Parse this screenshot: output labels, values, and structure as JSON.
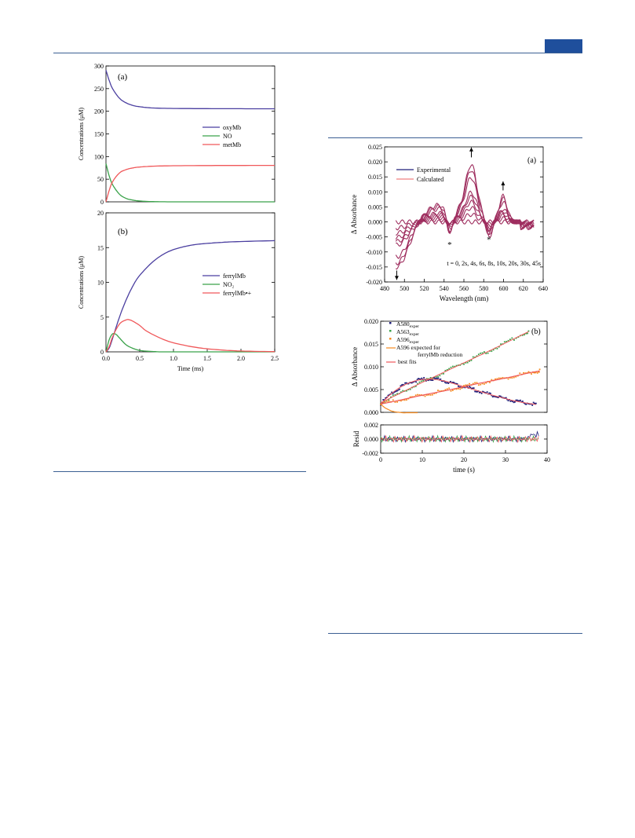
{
  "colors": {
    "rule": "#3b5f93",
    "tab": "#1f4f9c",
    "purple": "#4b3fa0",
    "green": "#3aa24a",
    "red": "#f0585a",
    "maroon": "#9e2d5e",
    "darkblue": "#1f1f7a",
    "orange": "#f58a1f",
    "lightred": "#f08080"
  },
  "chart_data": [
    {
      "id": "left-a",
      "type": "line",
      "panel_label": "(a)",
      "ylabel": "Concentrations (μM)",
      "xlabel": "",
      "xlim": [
        0,
        2.5
      ],
      "ylim": [
        0,
        320
      ],
      "y_ticks": [
        "0",
        "50",
        "100",
        "150",
        "200",
        "250",
        "300"
      ],
      "x_ticks": [],
      "legend": [
        "oxyMb",
        "NO",
        "metMb"
      ],
      "series": [
        {
          "name": "oxyMb",
          "x": [
            0,
            0.05,
            0.1,
            0.2,
            0.3,
            0.4,
            0.5,
            0.7,
            1.0,
            1.5,
            2.0,
            2.5
          ],
          "values": [
            310,
            285,
            266,
            244,
            233,
            227,
            224,
            221,
            220,
            219.5,
            219.3,
            219.2
          ]
        },
        {
          "name": "NO",
          "x": [
            0,
            0.05,
            0.1,
            0.2,
            0.3,
            0.4,
            0.5,
            0.7,
            1.0,
            1.5,
            2.0,
            2.5
          ],
          "values": [
            90,
            60,
            40,
            18,
            8,
            4,
            2,
            0.5,
            0,
            0,
            0,
            0
          ]
        },
        {
          "name": "metMb",
          "x": [
            0,
            0.05,
            0.1,
            0.2,
            0.3,
            0.4,
            0.5,
            0.7,
            1.0,
            1.5,
            2.0,
            2.5
          ],
          "values": [
            0,
            28,
            48,
            68,
            76,
            80,
            82,
            84,
            85,
            85.5,
            85.7,
            85.8
          ]
        }
      ]
    },
    {
      "id": "left-b",
      "type": "line",
      "panel_label": "(b)",
      "ylabel": "Concentrations (μM)",
      "xlabel": "Time (ms)",
      "xlim": [
        0,
        2.5
      ],
      "ylim": [
        0,
        20
      ],
      "y_ticks": [
        "0",
        "5",
        "10",
        "15",
        "20"
      ],
      "x_ticks": [
        "0.0",
        "0.5",
        "1.0",
        "1.5",
        "2.0",
        "2.5"
      ],
      "legend": [
        "ferrylMb",
        "NO₂",
        "ferrylMb•+"
      ],
      "series": [
        {
          "name": "ferrylMb",
          "x": [
            0,
            0.05,
            0.1,
            0.2,
            0.3,
            0.4,
            0.5,
            0.7,
            0.9,
            1.1,
            1.3,
            1.5,
            1.8,
            2.1,
            2.5
          ],
          "values": [
            0,
            0.6,
            2,
            5,
            7.5,
            9.5,
            11,
            13,
            14.3,
            15,
            15.4,
            15.6,
            15.8,
            15.9,
            16
          ]
        },
        {
          "name": "NO₂",
          "x": [
            0,
            0.05,
            0.1,
            0.15,
            0.2,
            0.3,
            0.4,
            0.5,
            0.6,
            0.7,
            0.8,
            1.0,
            2.5
          ],
          "values": [
            0,
            1.8,
            2.6,
            2.5,
            2.0,
            1.0,
            0.5,
            0.2,
            0.1,
            0.05,
            0,
            0,
            0
          ]
        },
        {
          "name": "ferrylMb•+",
          "x": [
            0,
            0.05,
            0.1,
            0.2,
            0.3,
            0.35,
            0.4,
            0.5,
            0.6,
            0.8,
            1.0,
            1.3,
            1.6,
            2.0,
            2.5
          ],
          "values": [
            0,
            0.8,
            2.2,
            4.0,
            4.6,
            4.6,
            4.4,
            3.8,
            3.0,
            2.0,
            1.3,
            0.7,
            0.35,
            0.12,
            0.03
          ]
        }
      ]
    },
    {
      "id": "right-a",
      "type": "line",
      "panel_label": "(a)",
      "ylabel": "Δ Absorbance",
      "xlabel": "Wavelength (nm)",
      "xlim": [
        470,
        640
      ],
      "ylim": [
        -0.02,
        0.025
      ],
      "y_ticks": [
        "-0.020",
        "-0.015",
        "-0.010",
        "-0.005",
        "0.000",
        "0.005",
        "0.010",
        "0.015",
        "0.020",
        "0.025"
      ],
      "x_ticks": [
        "480",
        "500",
        "520",
        "540",
        "560",
        "580",
        "600",
        "620",
        "640"
      ],
      "legend": [
        "Experimental",
        "Calculated"
      ],
      "annotation": "t = 0, 2s, 4s, 6s, 8s, 10s, 20s, 30s, 45s",
      "markers": [
        "*",
        "*"
      ],
      "times_s": [
        0,
        2,
        4,
        6,
        8,
        10,
        20,
        30,
        45
      ]
    },
    {
      "id": "right-b",
      "type": "scatter",
      "panel_label": "(b)",
      "ylabel": "Δ Absorbance",
      "xlabel": "",
      "xlim": [
        0,
        45
      ],
      "ylim": [
        -0.002,
        0.02
      ],
      "y_ticks": [
        "0.000",
        "0.005",
        "0.010",
        "0.015",
        "0.020"
      ],
      "x_ticks": [],
      "legend": [
        "A580",
        "A563",
        "A596",
        "A596 expected for ferrylMb reduction",
        "best fits"
      ],
      "legend_sub": "exper",
      "series": [
        {
          "name": "A563",
          "x": [
            0,
            5,
            10,
            15,
            20,
            25,
            30,
            35,
            40
          ],
          "values": [
            0.0003,
            0.0025,
            0.0047,
            0.0068,
            0.0089,
            0.011,
            0.0131,
            0.0153,
            0.0175
          ]
        },
        {
          "name": "A580",
          "x": [
            0,
            3,
            6,
            9,
            12,
            15,
            18,
            21,
            24,
            27,
            30,
            33,
            36,
            39,
            42
          ],
          "values": [
            0,
            0.0026,
            0.0044,
            0.0055,
            0.006,
            0.0059,
            0.0054,
            0.0046,
            0.0038,
            0.003,
            0.0022,
            0.0015,
            0.0008,
            0.0003,
            -0.0001
          ]
        },
        {
          "name": "A596",
          "x": [
            0,
            5,
            10,
            15,
            20,
            25,
            30,
            35,
            40,
            43
          ],
          "values": [
            0,
            0.0009,
            0.0019,
            0.0028,
            0.0037,
            0.0047,
            0.0056,
            0.0065,
            0.0075,
            0.008
          ]
        },
        {
          "name": "A596 expected for ferrylMb reduction",
          "x": [
            0,
            1,
            2,
            3,
            4,
            5,
            6,
            7,
            8,
            9,
            10
          ],
          "values": [
            0,
            -0.0008,
            -0.0013,
            -0.0017,
            -0.0019,
            -0.002,
            -0.0021,
            -0.0021,
            -0.0021,
            -0.0021,
            -0.0021
          ]
        }
      ]
    },
    {
      "id": "right-resid",
      "type": "line",
      "ylabel": "Resid",
      "xlabel": "time (s)",
      "xlim": [
        0,
        45
      ],
      "ylim": [
        -0.002,
        0.002
      ],
      "y_ticks": [
        "-0.002",
        "0.000",
        "0.002"
      ],
      "x_ticks": [
        "0",
        "10",
        "20",
        "30",
        "40"
      ]
    }
  ]
}
